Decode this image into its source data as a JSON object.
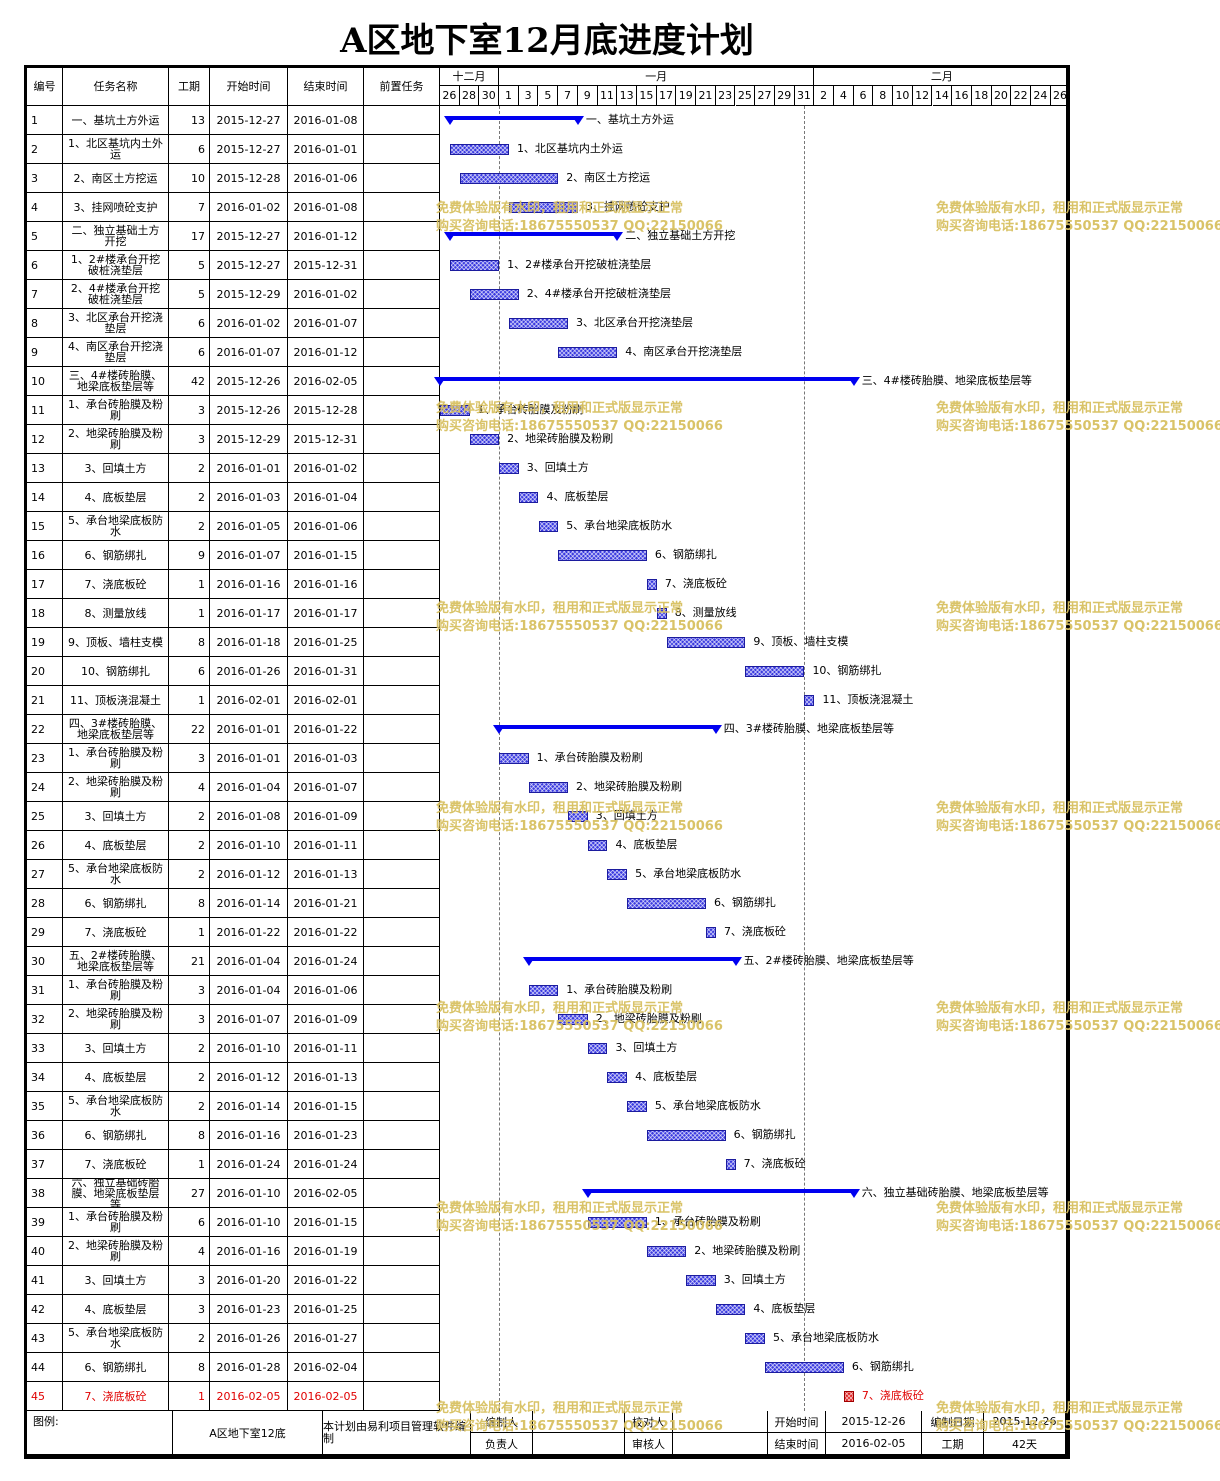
{
  "title": "A区地下室12月底进度计划",
  "headers": {
    "id": "编号",
    "name": "任务名称",
    "duration": "工期",
    "start": "开始时间",
    "end": "结束时间",
    "predecessors": "前置任务"
  },
  "timeline": {
    "months": [
      {
        "label": "十二月"
      },
      {
        "label": "一月"
      },
      {
        "label": "二月"
      }
    ],
    "day_ticks": [
      "26",
      "28",
      "30",
      "1",
      "3",
      "5",
      "7",
      "9",
      "11",
      "13",
      "15",
      "17",
      "19",
      "21",
      "23",
      "25",
      "27",
      "29",
      "31",
      "2",
      "4",
      "6",
      "8",
      "10",
      "12",
      "14",
      "16",
      "18",
      "20",
      "22",
      "24",
      "26"
    ]
  },
  "tasks": [
    {
      "id": "1",
      "name": "一、基坑土方外运",
      "duration": "13",
      "start": "2015-12-27",
      "end": "2016-01-08",
      "summary": true,
      "s": 1,
      "e": 13
    },
    {
      "id": "2",
      "name": "1、北区基坑内土外运",
      "duration": "6",
      "start": "2015-12-27",
      "end": "2016-01-01",
      "s": 1,
      "e": 6
    },
    {
      "id": "3",
      "name": "2、南区土方挖运",
      "duration": "10",
      "start": "2015-12-28",
      "end": "2016-01-06",
      "s": 2,
      "e": 11
    },
    {
      "id": "4",
      "name": "3、挂网喷砼支护",
      "duration": "7",
      "start": "2016-01-02",
      "end": "2016-01-08",
      "s": 7,
      "e": 13
    },
    {
      "id": "5",
      "name": "二、独立基础土方开挖",
      "duration": "17",
      "start": "2015-12-27",
      "end": "2016-01-12",
      "summary": true,
      "s": 1,
      "e": 17
    },
    {
      "id": "6",
      "name": "1、2#楼承台开挖破桩浇垫层",
      "duration": "5",
      "start": "2015-12-27",
      "end": "2015-12-31",
      "s": 1,
      "e": 5
    },
    {
      "id": "7",
      "name": "2、4#楼承台开挖破桩浇垫层",
      "duration": "5",
      "start": "2015-12-29",
      "end": "2016-01-02",
      "s": 3,
      "e": 7
    },
    {
      "id": "8",
      "name": "3、北区承台开挖浇垫层",
      "duration": "6",
      "start": "2016-01-02",
      "end": "2016-01-07",
      "s": 7,
      "e": 12
    },
    {
      "id": "9",
      "name": "4、南区承台开挖浇垫层",
      "duration": "6",
      "start": "2016-01-07",
      "end": "2016-01-12",
      "s": 12,
      "e": 17
    },
    {
      "id": "10",
      "name": "三、4#楼砖胎膜、地梁底板垫层等",
      "duration": "42",
      "start": "2015-12-26",
      "end": "2016-02-05",
      "summary": true,
      "s": 0,
      "e": 41
    },
    {
      "id": "11",
      "name": "1、承台砖胎膜及粉刷",
      "duration": "3",
      "start": "2015-12-26",
      "end": "2015-12-28",
      "s": 0,
      "e": 2
    },
    {
      "id": "12",
      "name": "2、地梁砖胎膜及粉刷",
      "duration": "3",
      "start": "2015-12-29",
      "end": "2015-12-31",
      "s": 3,
      "e": 5
    },
    {
      "id": "13",
      "name": "3、回填土方",
      "duration": "2",
      "start": "2016-01-01",
      "end": "2016-01-02",
      "s": 6,
      "e": 7
    },
    {
      "id": "14",
      "name": "4、底板垫层",
      "duration": "2",
      "start": "2016-01-03",
      "end": "2016-01-04",
      "s": 8,
      "e": 9
    },
    {
      "id": "15",
      "name": "5、承台地梁底板防水",
      "duration": "2",
      "start": "2016-01-05",
      "end": "2016-01-06",
      "s": 10,
      "e": 11
    },
    {
      "id": "16",
      "name": "6、钢筋绑扎",
      "duration": "9",
      "start": "2016-01-07",
      "end": "2016-01-15",
      "s": 12,
      "e": 20
    },
    {
      "id": "17",
      "name": "7、浇底板砼",
      "duration": "1",
      "start": "2016-01-16",
      "end": "2016-01-16",
      "s": 21,
      "e": 21
    },
    {
      "id": "18",
      "name": "8、测量放线",
      "duration": "1",
      "start": "2016-01-17",
      "end": "2016-01-17",
      "s": 22,
      "e": 22
    },
    {
      "id": "19",
      "name": "9、顶板、墙柱支模",
      "duration": "8",
      "start": "2016-01-18",
      "end": "2016-01-25",
      "s": 23,
      "e": 30
    },
    {
      "id": "20",
      "name": "10、钢筋绑扎",
      "duration": "6",
      "start": "2016-01-26",
      "end": "2016-01-31",
      "s": 31,
      "e": 36
    },
    {
      "id": "21",
      "name": "11、顶板浇混凝土",
      "duration": "1",
      "start": "2016-02-01",
      "end": "2016-02-01",
      "s": 37,
      "e": 37
    },
    {
      "id": "22",
      "name": "四、3#楼砖胎膜、地梁底板垫层等",
      "duration": "22",
      "start": "2016-01-01",
      "end": "2016-01-22",
      "summary": true,
      "s": 6,
      "e": 27
    },
    {
      "id": "23",
      "name": "1、承台砖胎膜及粉刷",
      "duration": "3",
      "start": "2016-01-01",
      "end": "2016-01-03",
      "s": 6,
      "e": 8
    },
    {
      "id": "24",
      "name": "2、地梁砖胎膜及粉刷",
      "duration": "4",
      "start": "2016-01-04",
      "end": "2016-01-07",
      "s": 9,
      "e": 12
    },
    {
      "id": "25",
      "name": "3、回填土方",
      "duration": "2",
      "start": "2016-01-08",
      "end": "2016-01-09",
      "s": 13,
      "e": 14
    },
    {
      "id": "26",
      "name": "4、底板垫层",
      "duration": "2",
      "start": "2016-01-10",
      "end": "2016-01-11",
      "s": 15,
      "e": 16
    },
    {
      "id": "27",
      "name": "5、承台地梁底板防水",
      "duration": "2",
      "start": "2016-01-12",
      "end": "2016-01-13",
      "s": 17,
      "e": 18
    },
    {
      "id": "28",
      "name": "6、钢筋绑扎",
      "duration": "8",
      "start": "2016-01-14",
      "end": "2016-01-21",
      "s": 19,
      "e": 26
    },
    {
      "id": "29",
      "name": "7、浇底板砼",
      "duration": "1",
      "start": "2016-01-22",
      "end": "2016-01-22",
      "s": 27,
      "e": 27
    },
    {
      "id": "30",
      "name": "五、2#楼砖胎膜、地梁底板垫层等",
      "duration": "21",
      "start": "2016-01-04",
      "end": "2016-01-24",
      "summary": true,
      "s": 9,
      "e": 29
    },
    {
      "id": "31",
      "name": "1、承台砖胎膜及粉刷",
      "duration": "3",
      "start": "2016-01-04",
      "end": "2016-01-06",
      "s": 9,
      "e": 11
    },
    {
      "id": "32",
      "name": "2、地梁砖胎膜及粉刷",
      "duration": "3",
      "start": "2016-01-07",
      "end": "2016-01-09",
      "s": 12,
      "e": 14
    },
    {
      "id": "33",
      "name": "3、回填土方",
      "duration": "2",
      "start": "2016-01-10",
      "end": "2016-01-11",
      "s": 15,
      "e": 16
    },
    {
      "id": "34",
      "name": "4、底板垫层",
      "duration": "2",
      "start": "2016-01-12",
      "end": "2016-01-13",
      "s": 17,
      "e": 18
    },
    {
      "id": "35",
      "name": "5、承台地梁底板防水",
      "duration": "2",
      "start": "2016-01-14",
      "end": "2016-01-15",
      "s": 19,
      "e": 20
    },
    {
      "id": "36",
      "name": "6、钢筋绑扎",
      "duration": "8",
      "start": "2016-01-16",
      "end": "2016-01-23",
      "s": 21,
      "e": 28
    },
    {
      "id": "37",
      "name": "7、浇底板砼",
      "duration": "1",
      "start": "2016-01-24",
      "end": "2016-01-24",
      "s": 29,
      "e": 29
    },
    {
      "id": "38",
      "name": "六、独立基础砖胎膜、地梁底板垫层等",
      "duration": "27",
      "start": "2016-01-10",
      "end": "2016-02-05",
      "summary": true,
      "s": 15,
      "e": 41
    },
    {
      "id": "39",
      "name": "1、承台砖胎膜及粉刷",
      "duration": "6",
      "start": "2016-01-10",
      "end": "2016-01-15",
      "s": 15,
      "e": 20
    },
    {
      "id": "40",
      "name": "2、地梁砖胎膜及粉刷",
      "duration": "4",
      "start": "2016-01-16",
      "end": "2016-01-19",
      "s": 21,
      "e": 24
    },
    {
      "id": "41",
      "name": "3、回填土方",
      "duration": "3",
      "start": "2016-01-20",
      "end": "2016-01-22",
      "s": 25,
      "e": 27
    },
    {
      "id": "42",
      "name": "4、底板垫层",
      "duration": "3",
      "start": "2016-01-23",
      "end": "2016-01-25",
      "s": 28,
      "e": 30
    },
    {
      "id": "43",
      "name": "5、承台地梁底板防水",
      "duration": "2",
      "start": "2016-01-26",
      "end": "2016-01-27",
      "s": 31,
      "e": 32
    },
    {
      "id": "44",
      "name": "6、钢筋绑扎",
      "duration": "8",
      "start": "2016-01-28",
      "end": "2016-02-04",
      "s": 33,
      "e": 40
    },
    {
      "id": "45",
      "name": "7、浇底板砼",
      "duration": "1",
      "start": "2016-02-05",
      "end": "2016-02-05",
      "highlight": true,
      "s": 41,
      "e": 41
    }
  ],
  "footer": {
    "legend_label": "图例:",
    "project_name": "A区地下室12底",
    "note": "本计划由易利项目管理软件编制",
    "editor_label": "编制人",
    "editor_value": "",
    "reviewer_label": "校对人",
    "reviewer_value": "",
    "owner_label": "负责人",
    "owner_value": "",
    "approver_label": "审核人",
    "approver_value": "",
    "start_label": "开始时间",
    "start_value": "2015-12-26",
    "end_label": "结束时间",
    "end_value": "2016-02-05",
    "date_label": "编制日期",
    "date_value": "2015-12-26",
    "duration_label": "工期",
    "duration_value": "42天"
  },
  "watermark": {
    "line1": "免费体验版有水印，租用和正式版显示正常",
    "line2": "购买咨询电话:18675550537 QQ:22150066"
  },
  "colors": {
    "bar": "#3a3ae0",
    "summary": "#0000f0",
    "highlight": "#e00000",
    "watermark": "#d8c060"
  }
}
